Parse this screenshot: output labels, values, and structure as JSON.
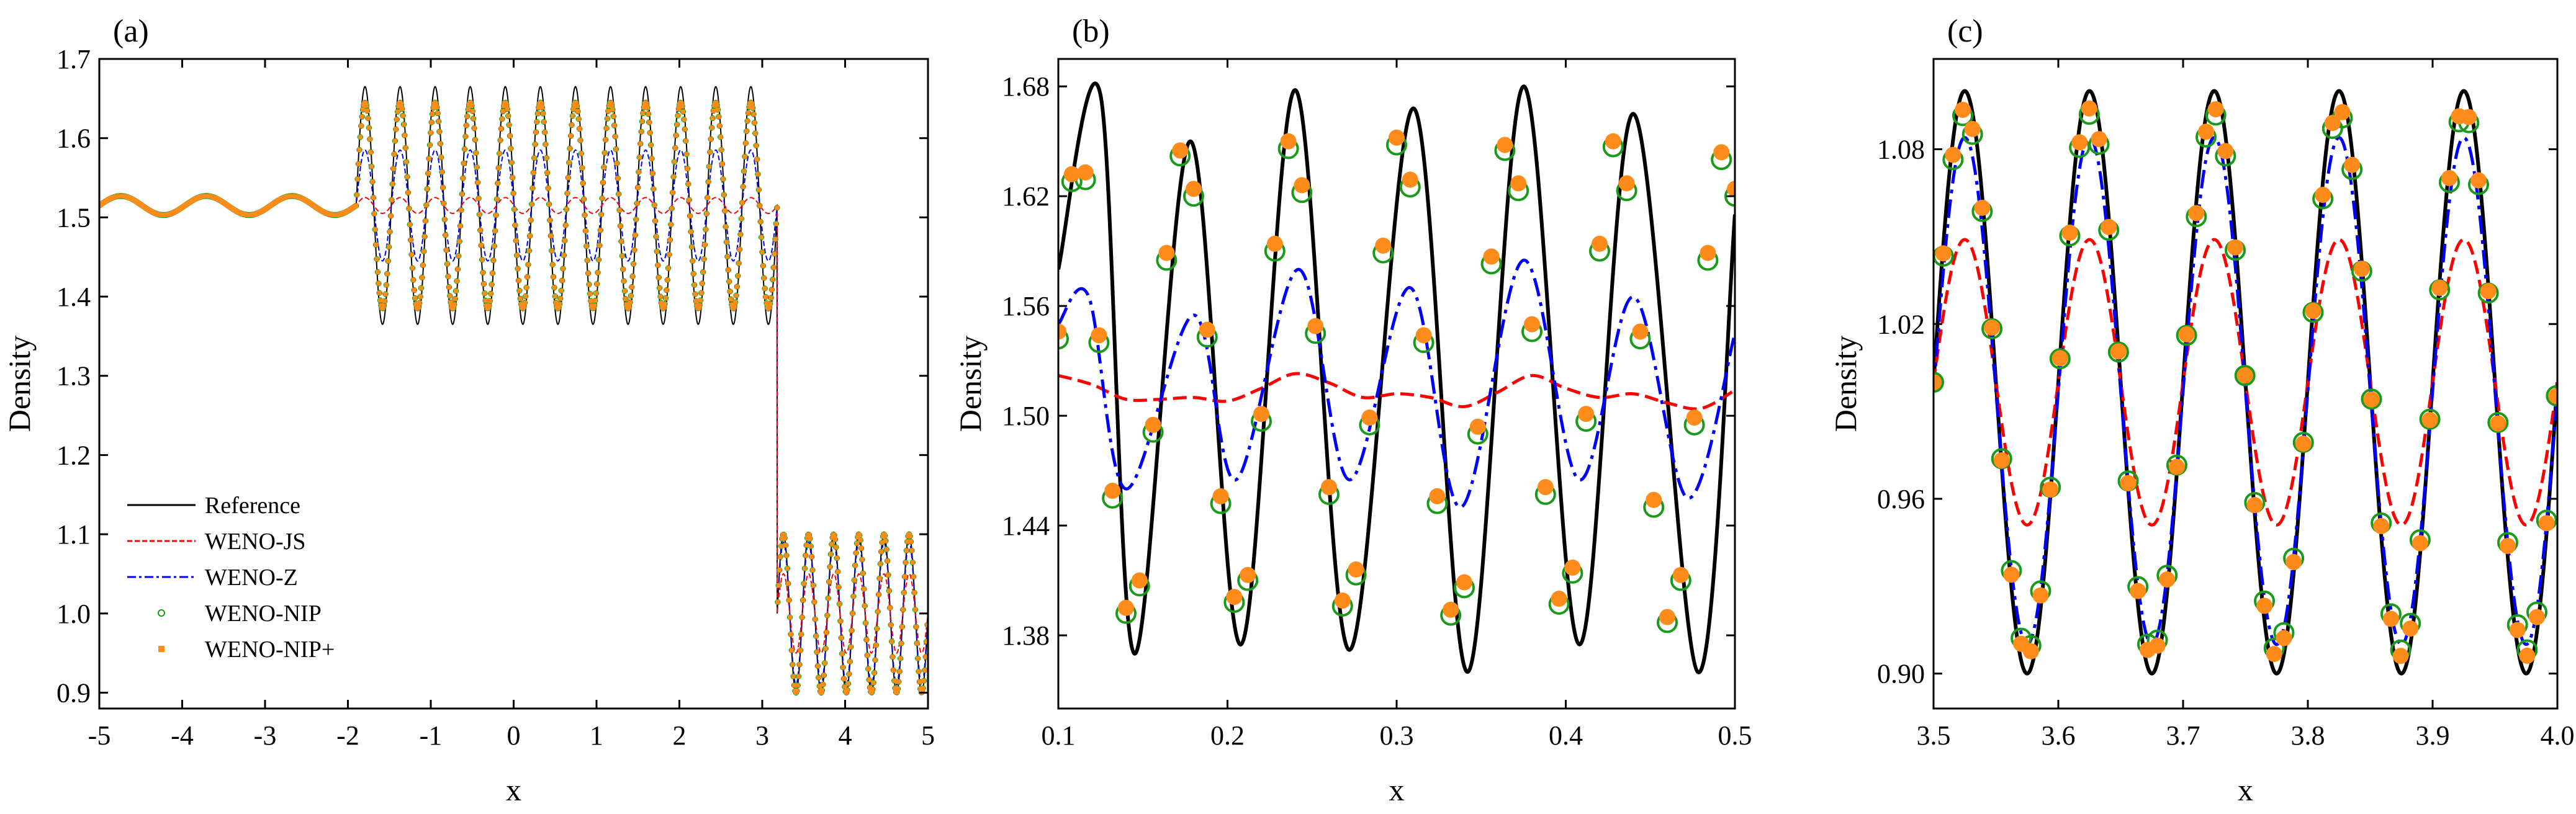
{
  "figure": {
    "panels": [
      "a",
      "b",
      "c"
    ]
  },
  "legend": {
    "entries": [
      {
        "key": "reference",
        "label": "Reference"
      },
      {
        "key": "wenojs",
        "label": "WENO-JS"
      },
      {
        "key": "wenoz",
        "label": "WENO-Z"
      },
      {
        "key": "wenonip",
        "label": "WENO-NIP"
      },
      {
        "key": "wenonipplus",
        "label": "WENO-NIP+"
      }
    ]
  },
  "colors": {
    "reference": "#000000",
    "wenojs": "#ff0000",
    "wenoz": "#0000ff",
    "wenonip": "#1a9a1a",
    "wenonipplus": "#ff8c1a"
  },
  "chart_data": [
    {
      "type": "line",
      "panel_label": "(a)",
      "title": "",
      "xlabel": "x",
      "ylabel": "Density",
      "xlim": [
        -5,
        5
      ],
      "ylim": [
        0.88,
        1.7
      ],
      "xticks": [
        -5,
        -4,
        -3,
        -2,
        -1,
        0,
        1,
        2,
        3,
        4,
        5
      ],
      "xtick_labels": [
        "-5",
        "-4",
        "-3",
        "-2",
        "-1",
        "0",
        "1",
        "2",
        "3",
        "4",
        "5"
      ],
      "yticks": [
        0.9,
        1.0,
        1.1,
        1.2,
        1.3,
        1.4,
        1.5,
        1.6,
        1.7
      ],
      "ytick_labels": [
        "0.9",
        "1.0",
        "1.1",
        "1.2",
        "1.3",
        "1.4",
        "1.5",
        "1.6",
        "1.7"
      ],
      "legend_position": "bottom-left",
      "series": [
        {
          "name": "Reference",
          "style": "solid",
          "segments": [
            {
              "x0": -5,
              "x1": -1.9,
              "mean": 1.515,
              "amp": 0.012,
              "k": 30
            },
            {
              "x0": -1.9,
              "x1": 3.18,
              "mean": 1.515,
              "amp": 0.15,
              "k": 120
            },
            {
              "x0": 3.18,
              "x1": 5.0,
              "mean": 1.0,
              "amp": 0.1,
              "k": 60
            }
          ]
        },
        {
          "name": "WENO-JS",
          "style": "dashed",
          "segments": [
            {
              "x0": -5,
              "x1": -1.9,
              "mean": 1.515,
              "amp": 0.012,
              "k": 30
            },
            {
              "x0": -1.9,
              "x1": 3.18,
              "mean": 1.515,
              "amp": 0.01,
              "k": 120
            },
            {
              "x0": 3.18,
              "x1": 5.0,
              "mean": 1.0,
              "amp": 0.05,
              "k": 60
            }
          ]
        },
        {
          "name": "WENO-Z",
          "style": "dashdot",
          "segments": [
            {
              "x0": -5,
              "x1": -1.9,
              "mean": 1.515,
              "amp": 0.012,
              "k": 30
            },
            {
              "x0": -1.9,
              "x1": 3.18,
              "mean": 1.515,
              "amp": 0.07,
              "k": 120
            },
            {
              "x0": 3.18,
              "x1": 5.0,
              "mean": 1.0,
              "amp": 0.09,
              "k": 60
            }
          ]
        },
        {
          "name": "WENO-NIP",
          "style": "open-circle",
          "segments": [
            {
              "x0": -5,
              "x1": -1.9,
              "mean": 1.515,
              "amp": 0.012,
              "k": 30
            },
            {
              "x0": -1.9,
              "x1": 3.18,
              "mean": 1.515,
              "amp": 0.13,
              "k": 120
            },
            {
              "x0": 3.18,
              "x1": 5.0,
              "mean": 1.0,
              "amp": 0.1,
              "k": 60
            }
          ]
        },
        {
          "name": "WENO-NIP+",
          "style": "filled-square",
          "segments": [
            {
              "x0": -5,
              "x1": -1.9,
              "mean": 1.515,
              "amp": 0.012,
              "k": 30
            },
            {
              "x0": -1.9,
              "x1": 3.18,
              "mean": 1.515,
              "amp": 0.13,
              "k": 120
            },
            {
              "x0": 3.18,
              "x1": 5.0,
              "mean": 1.0,
              "amp": 0.1,
              "k": 60
            }
          ]
        }
      ]
    },
    {
      "type": "line",
      "panel_label": "(b)",
      "title": "",
      "xlabel": "x",
      "ylabel": "Density",
      "xlim": [
        0.1,
        0.5
      ],
      "ylim": [
        1.34,
        1.695
      ],
      "xticks": [
        0.1,
        0.2,
        0.3,
        0.4,
        0.5
      ],
      "xtick_labels": [
        "0.1",
        "0.2",
        "0.3",
        "0.4",
        "0.5"
      ],
      "yticks": [
        1.38,
        1.44,
        1.5,
        1.56,
        1.62,
        1.68
      ],
      "ytick_labels": [
        "1.38",
        "1.44",
        "1.50",
        "1.56",
        "1.62",
        "1.68"
      ],
      "series": [
        {
          "name": "Reference",
          "style": "solid",
          "x": [
            0.1,
            0.125,
            0.145,
            0.178,
            0.208,
            0.24,
            0.272,
            0.31,
            0.342,
            0.375,
            0.408,
            0.44,
            0.478,
            0.5
          ],
          "y": [
            1.58,
            1.675,
            1.37,
            1.65,
            1.375,
            1.678,
            1.372,
            1.668,
            1.36,
            1.68,
            1.375,
            1.665,
            1.36,
            1.61
          ]
        },
        {
          "name": "WENO-JS",
          "style": "dashed",
          "x": [
            0.1,
            0.12,
            0.14,
            0.16,
            0.18,
            0.2,
            0.22,
            0.24,
            0.26,
            0.28,
            0.3,
            0.32,
            0.34,
            0.36,
            0.38,
            0.4,
            0.42,
            0.44,
            0.46,
            0.48,
            0.5
          ],
          "y": [
            1.522,
            1.517,
            1.509,
            1.509,
            1.51,
            1.508,
            1.515,
            1.523,
            1.518,
            1.51,
            1.512,
            1.51,
            1.505,
            1.513,
            1.522,
            1.515,
            1.51,
            1.512,
            1.507,
            1.504,
            1.514
          ]
        },
        {
          "name": "WENO-Z",
          "style": "dashdot",
          "x": [
            0.1,
            0.118,
            0.14,
            0.18,
            0.205,
            0.242,
            0.272,
            0.308,
            0.338,
            0.375,
            0.408,
            0.44,
            0.472,
            0.5
          ],
          "y": [
            1.55,
            1.565,
            1.46,
            1.555,
            1.465,
            1.58,
            1.465,
            1.57,
            1.45,
            1.585,
            1.465,
            1.565,
            1.455,
            1.545
          ]
        },
        {
          "name": "WENO-NIP",
          "style": "open-circle",
          "x": [
            0.1,
            0.108,
            0.116,
            0.124,
            0.132,
            0.14,
            0.148,
            0.156,
            0.164,
            0.172,
            0.18,
            0.188,
            0.196,
            0.204,
            0.212,
            0.22,
            0.228,
            0.236,
            0.244,
            0.252,
            0.26,
            0.268,
            0.276,
            0.284,
            0.292,
            0.3,
            0.308,
            0.316,
            0.324,
            0.332,
            0.34,
            0.348,
            0.356,
            0.364,
            0.372,
            0.38,
            0.388,
            0.396,
            0.404,
            0.412,
            0.42,
            0.428,
            0.436,
            0.444,
            0.452,
            0.46,
            0.468,
            0.476,
            0.484,
            0.492,
            0.5
          ],
          "y": [
            1.542,
            1.628,
            1.629,
            1.54,
            1.455,
            1.392,
            1.407,
            1.491,
            1.585,
            1.642,
            1.62,
            1.543,
            1.452,
            1.398,
            1.41,
            1.497,
            1.59,
            1.646,
            1.622,
            1.545,
            1.457,
            1.396,
            1.413,
            1.495,
            1.589,
            1.648,
            1.625,
            1.54,
            1.452,
            1.391,
            1.406,
            1.49,
            1.583,
            1.645,
            1.623,
            1.546,
            1.457,
            1.397,
            1.414,
            1.497,
            1.59,
            1.647,
            1.623,
            1.542,
            1.45,
            1.387,
            1.41,
            1.495,
            1.585,
            1.64,
            1.62
          ]
        },
        {
          "name": "WENO-NIP+",
          "style": "filled-circle",
          "x": [
            0.1,
            0.108,
            0.116,
            0.124,
            0.132,
            0.14,
            0.148,
            0.156,
            0.164,
            0.172,
            0.18,
            0.188,
            0.196,
            0.204,
            0.212,
            0.22,
            0.228,
            0.236,
            0.244,
            0.252,
            0.26,
            0.268,
            0.276,
            0.284,
            0.292,
            0.3,
            0.308,
            0.316,
            0.324,
            0.332,
            0.34,
            0.348,
            0.356,
            0.364,
            0.372,
            0.38,
            0.388,
            0.396,
            0.404,
            0.412,
            0.42,
            0.428,
            0.436,
            0.444,
            0.452,
            0.46,
            0.468,
            0.476,
            0.484,
            0.492,
            0.5
          ],
          "y": [
            1.546,
            1.632,
            1.633,
            1.544,
            1.459,
            1.395,
            1.41,
            1.495,
            1.589,
            1.645,
            1.624,
            1.547,
            1.456,
            1.401,
            1.413,
            1.501,
            1.594,
            1.65,
            1.626,
            1.549,
            1.461,
            1.399,
            1.416,
            1.499,
            1.593,
            1.652,
            1.629,
            1.544,
            1.456,
            1.394,
            1.409,
            1.494,
            1.587,
            1.648,
            1.627,
            1.55,
            1.461,
            1.4,
            1.417,
            1.501,
            1.594,
            1.65,
            1.627,
            1.546,
            1.454,
            1.39,
            1.413,
            1.499,
            1.589,
            1.644,
            1.624
          ]
        }
      ]
    },
    {
      "type": "line",
      "panel_label": "(c)",
      "title": "",
      "xlabel": "x",
      "ylabel": "Density",
      "xlim": [
        3.5,
        4.0
      ],
      "ylim": [
        0.888,
        1.111
      ],
      "xticks": [
        3.5,
        3.6,
        3.7,
        3.8,
        3.9,
        4.0
      ],
      "xtick_labels": [
        "3.5",
        "3.6",
        "3.7",
        "3.8",
        "3.9",
        "4.0"
      ],
      "yticks": [
        0.9,
        0.96,
        1.02,
        1.08
      ],
      "ytick_labels": [
        "0.90",
        "0.96",
        "1.02",
        "1.08"
      ],
      "series": [
        {
          "name": "Reference",
          "style": "solid",
          "sine": {
            "mean": 1.0,
            "amp": 0.1,
            "period": 0.1,
            "peak": 3.525,
            "x0": 3.5,
            "x1": 4.0
          }
        },
        {
          "name": "WENO-JS",
          "style": "dashed",
          "sine": {
            "mean": 1.0,
            "amp": 0.049,
            "period": 0.1,
            "peak": 3.525,
            "x0": 3.5,
            "x1": 4.0
          }
        },
        {
          "name": "WENO-Z",
          "style": "dashdot",
          "sine": {
            "mean": 0.997,
            "amp": 0.087,
            "period": 0.1,
            "peak": 3.525,
            "x0": 3.5,
            "x1": 4.0
          }
        },
        {
          "name": "WENO-NIP",
          "style": "open-circle",
          "sine": {
            "mean": 1.0,
            "amp": 0.092,
            "period": 0.1,
            "peak": 3.525,
            "x0": 3.5,
            "x1": 4.0,
            "step": 0.0078
          }
        },
        {
          "name": "WENO-NIP+",
          "style": "filled-circle",
          "sine": {
            "mean": 1.0,
            "amp": 0.094,
            "period": 0.1,
            "peak": 3.525,
            "x0": 3.5,
            "x1": 4.0,
            "step": 0.0078
          }
        }
      ]
    }
  ]
}
